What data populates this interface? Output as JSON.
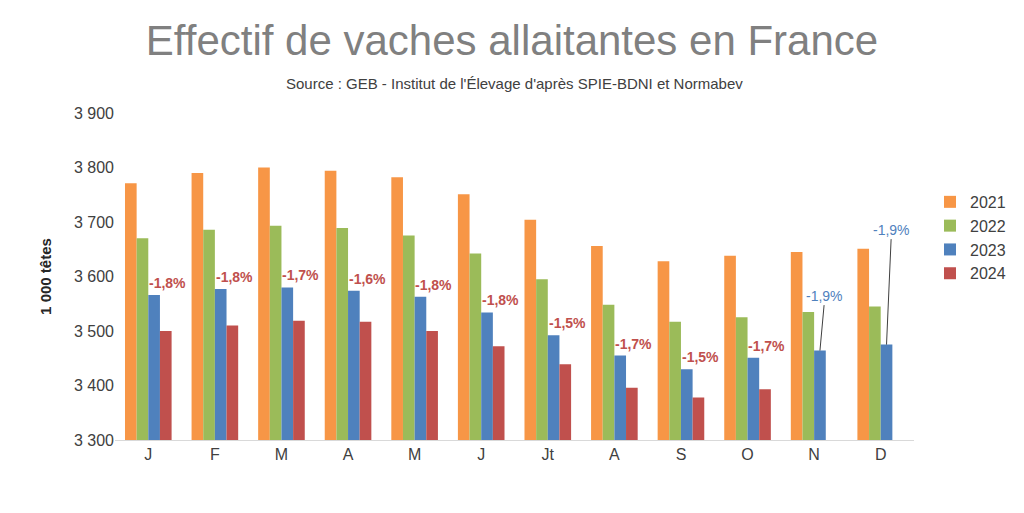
{
  "chart_data": {
    "type": "bar",
    "title": "Effectif de vaches allaitantes en France",
    "subtitle": "Source : GEB - Institut de l'Élevage d'après SPIE-BDNI et Normabev",
    "y_label": "1 000 têtes",
    "categories": [
      "J",
      "F",
      "M",
      "A",
      "M",
      "J",
      "Jt",
      "A",
      "S",
      "O",
      "N",
      "D"
    ],
    "series": [
      {
        "name": "2021",
        "color": "#f79646",
        "values": [
          3771,
          3790,
          3800,
          3794,
          3782,
          3751,
          3704,
          3656,
          3628,
          3638,
          3645,
          3651
        ]
      },
      {
        "name": "2022",
        "color": "#9bbb59",
        "values": [
          3670,
          3686,
          3693,
          3689,
          3675,
          3642,
          3595,
          3548,
          3517,
          3525,
          3535,
          3545
        ]
      },
      {
        "name": "2023",
        "color": "#4f81bd",
        "values": [
          3566,
          3577,
          3580,
          3574,
          3563,
          3534,
          3492,
          3455,
          3430,
          3451,
          3464,
          3475
        ]
      },
      {
        "name": "2024",
        "color": "#c0504d",
        "values": [
          3500,
          3510,
          3519,
          3517,
          3500,
          3472,
          3439,
          3396,
          3378,
          3393,
          null,
          null
        ]
      }
    ],
    "annotations": [
      {
        "text": "-1,8%",
        "color": "#c0504d"
      },
      {
        "text": "-1,8%",
        "color": "#c0504d"
      },
      {
        "text": "-1,7%",
        "color": "#c0504d"
      },
      {
        "text": "-1,6%",
        "color": "#c0504d"
      },
      {
        "text": "-1,8%",
        "color": "#c0504d"
      },
      {
        "text": "-1,8%",
        "color": "#c0504d"
      },
      {
        "text": "-1,5%",
        "color": "#c0504d"
      },
      {
        "text": "-1,7%",
        "color": "#c0504d"
      },
      {
        "text": "-1,5%",
        "color": "#c0504d"
      },
      {
        "text": "-1,7%",
        "color": "#c0504d"
      },
      {
        "text": "-1,9%",
        "color": "#4f81bd"
      },
      {
        "text": "-1,9%",
        "color": "#4f81bd"
      }
    ],
    "ylim": [
      3300,
      3900
    ],
    "yticks": [
      {
        "value": 3300,
        "label": "3 300"
      },
      {
        "value": 3400,
        "label": "3 400"
      },
      {
        "value": 3500,
        "label": "3 500"
      },
      {
        "value": 3600,
        "label": "3 600"
      },
      {
        "value": 3700,
        "label": "3 700"
      },
      {
        "value": 3800,
        "label": "3 800"
      },
      {
        "value": 3900,
        "label": "3 900"
      }
    ],
    "grid": false,
    "legend": "right",
    "data_labels": false
  }
}
